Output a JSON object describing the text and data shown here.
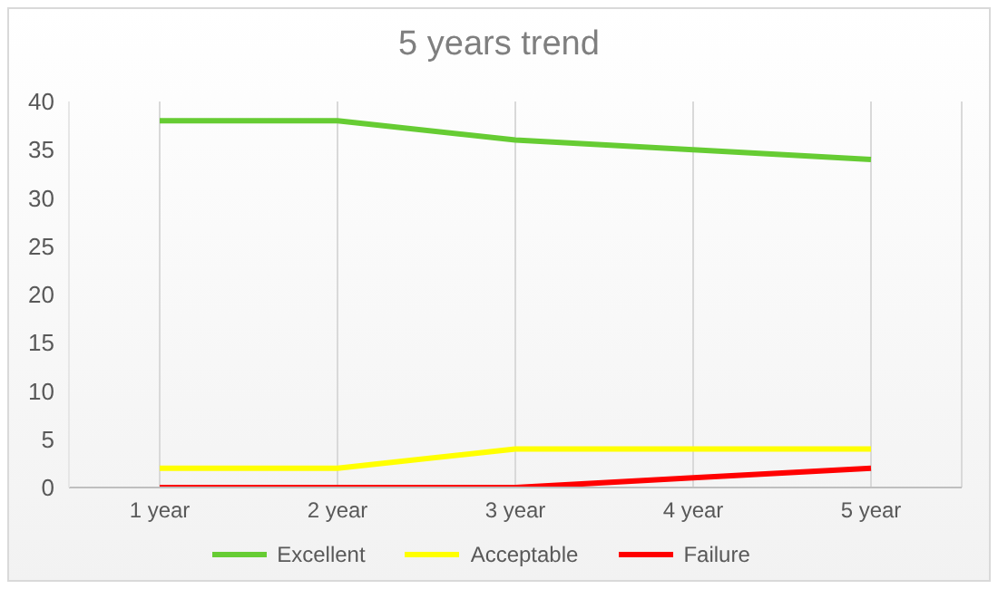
{
  "chart_data": {
    "type": "line",
    "title": "5 years trend",
    "categories": [
      "1 year",
      "2 year",
      "3 year",
      "4 year",
      "5 year"
    ],
    "series": [
      {
        "name": "Excellent",
        "color": "#66cc33",
        "values": [
          38,
          38,
          36,
          35,
          34
        ]
      },
      {
        "name": "Acceptable",
        "color": "#ffff00",
        "values": [
          2,
          2,
          4,
          4,
          4
        ]
      },
      {
        "name": "Failure",
        "color": "#ff0000",
        "values": [
          0,
          0,
          0,
          1,
          2
        ]
      }
    ],
    "ylim": [
      0,
      40
    ],
    "yticks": [
      0,
      5,
      10,
      15,
      20,
      25,
      30,
      35,
      40
    ],
    "grid": "x",
    "legend": "bottom",
    "marker": "none",
    "line_style": "solid"
  }
}
